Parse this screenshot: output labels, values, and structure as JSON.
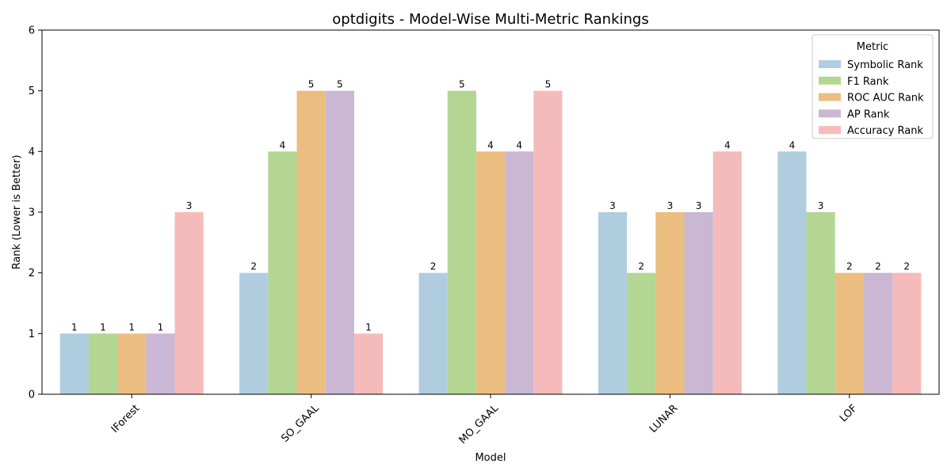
{
  "chart_data": {
    "type": "bar",
    "title": "optdigits - Model-Wise Multi-Metric Rankings",
    "xlabel": "Model",
    "ylabel": "Rank (Lower is Better)",
    "ylim": [
      0,
      6
    ],
    "yticks": [
      0,
      1,
      2,
      3,
      4,
      5,
      6
    ],
    "categories": [
      "IForest",
      "SO_GAAL",
      "MO_GAAL",
      "LUNAR",
      "LOF"
    ],
    "legend": {
      "title": "Metric",
      "position": "top-right"
    },
    "grid": false,
    "series": [
      {
        "name": "Symbolic Rank",
        "color": "#b0cde0",
        "values": [
          1,
          2,
          2,
          3,
          4
        ]
      },
      {
        "name": "F1 Rank",
        "color": "#b3d693",
        "values": [
          1,
          4,
          5,
          2,
          3
        ]
      },
      {
        "name": "ROC AUC Rank",
        "color": "#ecbd80",
        "values": [
          1,
          5,
          4,
          3,
          2
        ]
      },
      {
        "name": "AP Rank",
        "color": "#c9b7d3",
        "values": [
          1,
          5,
          4,
          3,
          2
        ]
      },
      {
        "name": "Accuracy Rank",
        "color": "#f5bbbb",
        "values": [
          3,
          1,
          5,
          4,
          2
        ]
      }
    ]
  }
}
